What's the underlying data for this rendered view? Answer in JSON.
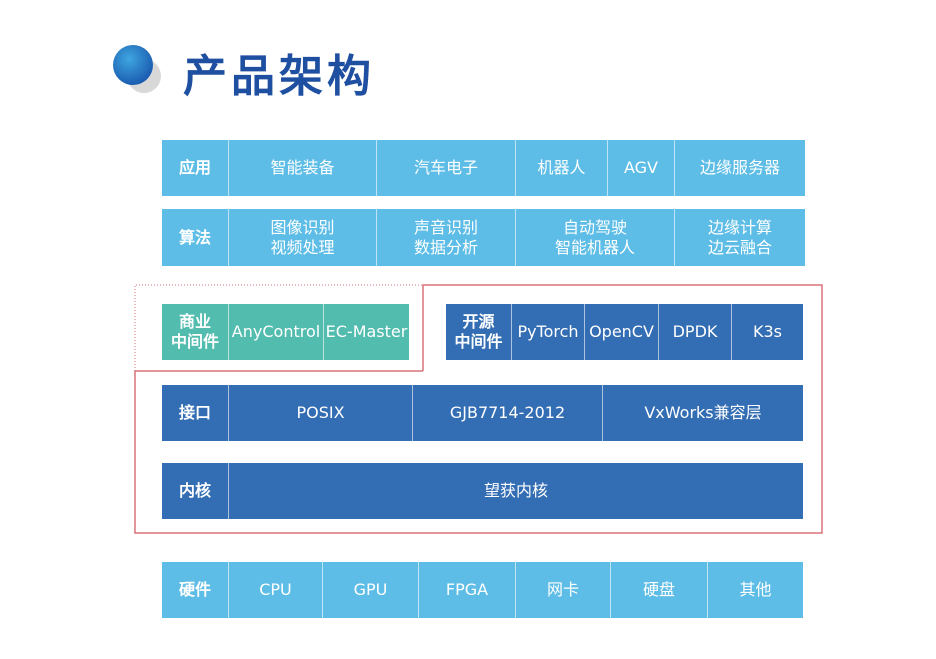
{
  "title": "产品架构",
  "colors": {
    "light_blue": "#5dbde6",
    "dark_blue": "#336db3",
    "teal": "#52bcae",
    "outline": "#d9737a",
    "title": "#1f4fa0"
  },
  "rows": {
    "app": {
      "label": "应用",
      "items": [
        "智能装备",
        "汽车电子",
        "机器人",
        "AGV",
        "边缘服务器"
      ]
    },
    "algo": {
      "label": "算法",
      "items": [
        "图像识别\n视频处理",
        "声音识别\n数据分析",
        "自动驾驶\n智能机器人",
        "边缘计算\n边云融合"
      ]
    },
    "commercial": {
      "label": "商业\n中间件",
      "items": [
        "AnyControl",
        "EC-Master"
      ]
    },
    "opensource": {
      "label": "开源\n中间件",
      "items": [
        "PyTorch",
        "OpenCV",
        "DPDK",
        "K3s"
      ]
    },
    "interface": {
      "label": "接口",
      "items": [
        "POSIX",
        "GJB7714-2012",
        "VxWorks兼容层"
      ]
    },
    "kernel": {
      "label": "内核",
      "items": [
        "望获内核"
      ]
    },
    "hardware": {
      "label": "硬件",
      "items": [
        "CPU",
        "GPU",
        "FPGA",
        "网卡",
        "硬盘",
        "其他"
      ]
    }
  }
}
